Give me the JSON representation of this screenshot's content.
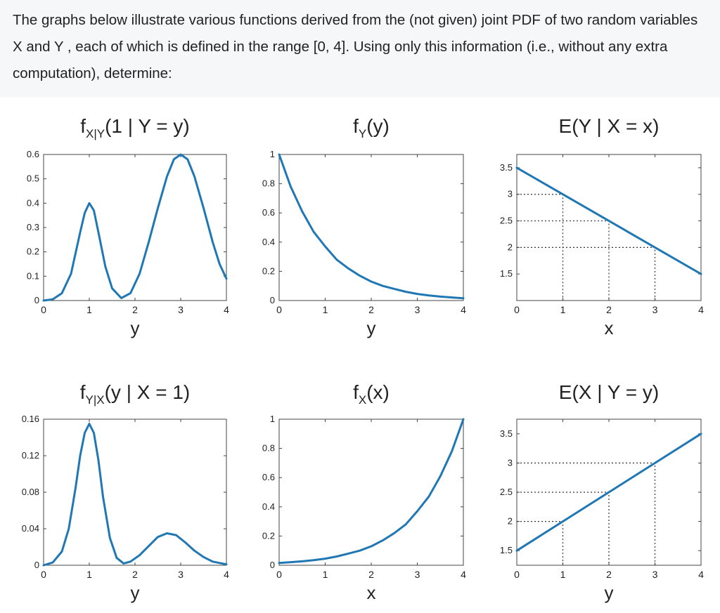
{
  "question": {
    "text": "The graphs below illustrate various functions derived from the (not given) joint PDF of two random variables X and Y , each of which is defined in the range [0, 4]. Using only this information (i.e., without any extra computation), determine:"
  },
  "style": {
    "line_color": "#1f77b4",
    "text_color": "#222222",
    "dotted_color": "#333333"
  },
  "chart_data": [
    {
      "id": "fxgy",
      "type": "line",
      "title_main": "f",
      "title_sub": "X|Y",
      "title_rest": "(1 | Y = y)",
      "xlabel": "y",
      "ylabel": "",
      "xlim": [
        0,
        4
      ],
      "ylim": [
        0,
        0.6
      ],
      "xticks": [
        "0",
        "1",
        "2",
        "3",
        "4"
      ],
      "yticks": [
        "0",
        "0.1",
        "0.2",
        "0.3",
        "0.4",
        "0.5",
        "0.6"
      ],
      "series": [
        {
          "x": [
            0,
            0.2,
            0.4,
            0.6,
            0.8,
            0.9,
            1.0,
            1.1,
            1.2,
            1.35,
            1.5,
            1.7,
            1.9,
            2.1,
            2.3,
            2.5,
            2.7,
            2.85,
            3.0,
            3.15,
            3.3,
            3.5,
            3.7,
            3.85,
            4.0
          ],
          "y": [
            0,
            0.005,
            0.03,
            0.11,
            0.28,
            0.36,
            0.4,
            0.37,
            0.28,
            0.14,
            0.05,
            0.01,
            0.03,
            0.11,
            0.24,
            0.38,
            0.51,
            0.58,
            0.6,
            0.58,
            0.51,
            0.38,
            0.24,
            0.15,
            0.09
          ]
        }
      ]
    },
    {
      "id": "fy",
      "type": "line",
      "title_main": "f",
      "title_sub": "Y",
      "title_rest": "(y)",
      "xlabel": "y",
      "ylabel": "",
      "xlim": [
        0,
        4
      ],
      "ylim": [
        0,
        1
      ],
      "xticks": [
        "0",
        "1",
        "2",
        "3",
        "4"
      ],
      "yticks": [
        "0",
        "0.2",
        "0.4",
        "0.6",
        "0.8",
        "1"
      ],
      "series": [
        {
          "x": [
            0,
            0.25,
            0.5,
            0.75,
            1.0,
            1.25,
            1.5,
            1.75,
            2.0,
            2.25,
            2.5,
            2.75,
            3.0,
            3.25,
            3.5,
            3.75,
            4.0
          ],
          "y": [
            1.0,
            0.78,
            0.61,
            0.47,
            0.37,
            0.28,
            0.22,
            0.17,
            0.13,
            0.1,
            0.08,
            0.06,
            0.045,
            0.035,
            0.027,
            0.021,
            0.016
          ]
        }
      ]
    },
    {
      "id": "eygx",
      "type": "line",
      "title_main": "E(Y | X = x)",
      "title_sub": "",
      "title_rest": "",
      "xlabel": "x",
      "ylabel": "",
      "xlim": [
        0,
        4
      ],
      "ylim": [
        1,
        3.75
      ],
      "xticks": [
        "0",
        "1",
        "2",
        "3",
        "4"
      ],
      "yticks": [
        "1.5",
        "2",
        "2.5",
        "3",
        "3.5"
      ],
      "series": [
        {
          "x": [
            0,
            4
          ],
          "y": [
            3.5,
            1.5
          ]
        }
      ],
      "guides": [
        {
          "x": 1,
          "y": 3
        },
        {
          "x": 2,
          "y": 2.5
        },
        {
          "x": 3,
          "y": 2
        }
      ]
    },
    {
      "id": "fygx",
      "type": "line",
      "title_main": "f",
      "title_sub": "Y|X",
      "title_rest": "(y | X = 1)",
      "xlabel": "y",
      "ylabel": "",
      "xlim": [
        0,
        4
      ],
      "ylim": [
        0,
        0.16
      ],
      "xticks": [
        "0",
        "1",
        "2",
        "3",
        "4"
      ],
      "yticks": [
        "0",
        "0.04",
        "0.08",
        "0.12",
        "0.16"
      ],
      "series": [
        {
          "x": [
            0,
            0.2,
            0.4,
            0.55,
            0.7,
            0.8,
            0.9,
            1.0,
            1.1,
            1.2,
            1.3,
            1.45,
            1.6,
            1.75,
            1.9,
            2.1,
            2.3,
            2.5,
            2.7,
            2.9,
            3.1,
            3.3,
            3.5,
            3.7,
            4.0
          ],
          "y": [
            0,
            0.003,
            0.015,
            0.04,
            0.085,
            0.12,
            0.145,
            0.155,
            0.145,
            0.115,
            0.075,
            0.03,
            0.008,
            0.002,
            0.004,
            0.011,
            0.021,
            0.031,
            0.035,
            0.033,
            0.025,
            0.016,
            0.009,
            0.004,
            0.001
          ]
        }
      ]
    },
    {
      "id": "fx",
      "type": "line",
      "title_main": "f",
      "title_sub": "X",
      "title_rest": "(x)",
      "xlabel": "x",
      "ylabel": "",
      "xlim": [
        0,
        4
      ],
      "ylim": [
        0,
        1
      ],
      "xticks": [
        "0",
        "1",
        "2",
        "3",
        "4"
      ],
      "yticks": [
        "0",
        "0.2",
        "0.4",
        "0.6",
        "0.8",
        "1"
      ],
      "series": [
        {
          "x": [
            0,
            0.25,
            0.5,
            0.75,
            1.0,
            1.25,
            1.5,
            1.75,
            2.0,
            2.25,
            2.5,
            2.75,
            3.0,
            3.25,
            3.5,
            3.75,
            4.0
          ],
          "y": [
            0.016,
            0.021,
            0.027,
            0.035,
            0.045,
            0.06,
            0.08,
            0.1,
            0.13,
            0.17,
            0.22,
            0.28,
            0.37,
            0.47,
            0.61,
            0.78,
            1.0
          ]
        }
      ]
    },
    {
      "id": "exgy",
      "type": "line",
      "title_main": "E(X | Y = y)",
      "title_sub": "",
      "title_rest": "",
      "xlabel": "y",
      "ylabel": "",
      "xlim": [
        0,
        4
      ],
      "ylim": [
        1.25,
        3.75
      ],
      "xticks": [
        "0",
        "1",
        "2",
        "3",
        "4"
      ],
      "yticks": [
        "1.5",
        "2",
        "2.5",
        "3",
        "3.5"
      ],
      "series": [
        {
          "x": [
            0,
            4
          ],
          "y": [
            1.5,
            3.5
          ]
        }
      ],
      "guides": [
        {
          "x": 1,
          "y": 2
        },
        {
          "x": 2,
          "y": 2.5
        },
        {
          "x": 3,
          "y": 3
        }
      ]
    }
  ]
}
